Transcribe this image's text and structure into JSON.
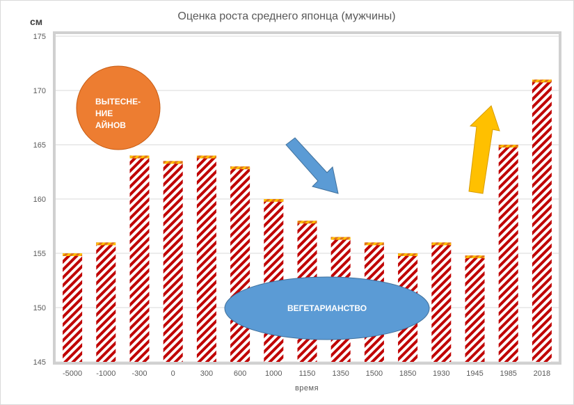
{
  "chart_data": {
    "type": "bar",
    "title": "Оценка роста среднего японца (мужчины)",
    "ylabel": "см",
    "xlabel": "время",
    "ylim": [
      145,
      175
    ],
    "y_ticks": [
      145,
      150,
      155,
      160,
      165,
      170,
      175
    ],
    "categories": [
      "-5000",
      "-1000",
      "-300",
      "0",
      "300",
      "600",
      "1000",
      "1150",
      "1350",
      "1500",
      "1850",
      "1930",
      "1945",
      "1985",
      "2018"
    ],
    "values": [
      155,
      156,
      164,
      163.5,
      164,
      163,
      160,
      158,
      156.5,
      156,
      155,
      156,
      154.8,
      165,
      171
    ],
    "grid": true,
    "bar_pattern": "diagonal-stripes",
    "colors": {
      "stripe": "#c00000",
      "bar_cap": "#ffc000",
      "plot_border": "#d0d0d0",
      "gridline": "#d9d9d9",
      "ellipse_ainu": "#ed7d31",
      "ellipse_veg": "#5b9bd5",
      "arrow_down": "#5b9bd5",
      "arrow_up": "#ffc000"
    },
    "annotations": {
      "ainu_lines": [
        "ВЫТЕСНЕ-",
        "НИЕ",
        "АЙНОВ"
      ],
      "vegetarian": "ВЕГЕТАРИАНСТВО"
    }
  }
}
